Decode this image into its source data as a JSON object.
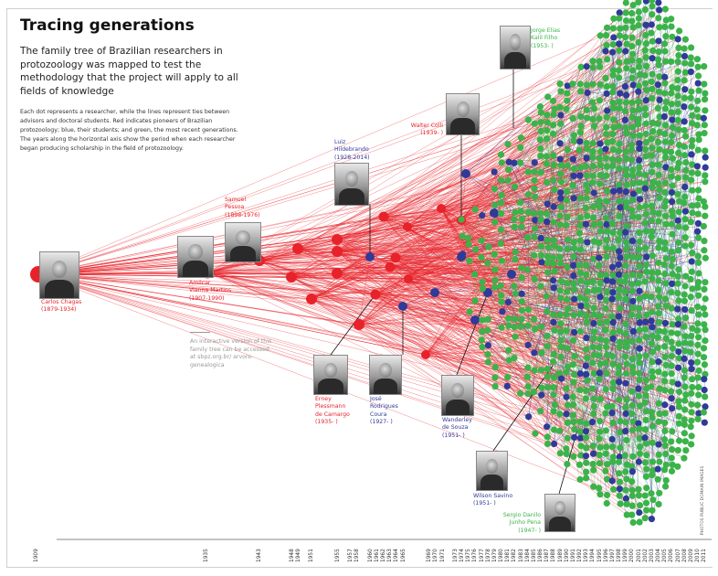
{
  "header": {
    "title": "Tracing generations",
    "subtitle": "The family tree of Brazilian researchers in protozoology was mapped to test the methodology that the project will apply to all fields of knowledge",
    "description": "Each dot represents a researcher, while the lines represent ties between advisors and doctoral students. Red indicates pioneers of Brazilian protozoology; blue, their students; and green, the most recent generations. The years along the horizontal axis show the period when each researcher began producing scholarship in the field of protozoology."
  },
  "note": "An interactive version of this family tree can be accessed at sbpz.org.br/ arvore-genealogica",
  "credit": "PHOTOS PUBLIC DOMAIN IMAGES",
  "colors": {
    "pioneers": "#e8222a",
    "students": "#2f3a99",
    "recent": "#3bb34a",
    "axis": "#888888"
  },
  "axis_years": [
    "1909",
    "1935",
    "1943",
    "1948",
    "1949",
    "1951",
    "1955",
    "1957",
    "1958",
    "1960",
    "1961",
    "1962",
    "1963",
    "1964",
    "1965",
    "1969",
    "1970",
    "1971",
    "1973",
    "1974",
    "1975",
    "1976",
    "1977",
    "1978",
    "1979",
    "1980",
    "1981",
    "1982",
    "1983",
    "1984",
    "1985",
    "1986",
    "1987",
    "1988",
    "1989",
    "1990",
    "1991",
    "1992",
    "1993",
    "1994",
    "1995",
    "1996",
    "1997",
    "1998",
    "1999",
    "2000",
    "2001",
    "2002",
    "2003",
    "2004",
    "2005",
    "2006",
    "2007",
    "2008",
    "2009",
    "2010",
    "2011"
  ],
  "researchers": [
    {
      "id": "chagas",
      "lines": [
        "Carlos Chagas",
        "(1879-1934)"
      ],
      "group": "pioneers"
    },
    {
      "id": "amilcar",
      "lines": [
        "Amilcar",
        "Vianna Martins",
        "(1907-1990)"
      ],
      "group": "pioneers"
    },
    {
      "id": "pessoa",
      "lines": [
        "Samuel",
        "Pessoa",
        "(1898-1976)"
      ],
      "group": "pioneers"
    },
    {
      "id": "hildebrando",
      "lines": [
        "Luiz",
        "Hildebrando",
        "(1928-2014)"
      ],
      "group": "students"
    },
    {
      "id": "colli",
      "lines": [
        "Walter Colli",
        "(1939- )"
      ],
      "group": "pioneers"
    },
    {
      "id": "kalil",
      "lines": [
        "Jorge Elias",
        "Kalil Filho",
        "(1953- )"
      ],
      "group": "recent"
    },
    {
      "id": "camargo",
      "lines": [
        "Erney",
        "Plessmann",
        "de Camargo",
        "(1935- )"
      ],
      "group": "pioneers"
    },
    {
      "id": "coura",
      "lines": [
        "José",
        "Rodrigues",
        "Coura",
        "(1927- )"
      ],
      "group": "students"
    },
    {
      "id": "souza",
      "lines": [
        "Wanderley",
        "de Souza",
        "(1951- )"
      ],
      "group": "students"
    },
    {
      "id": "savino",
      "lines": [
        "Wilson Savino",
        "(1951- )"
      ],
      "group": "students"
    },
    {
      "id": "pena",
      "lines": [
        "Sergio Danilo",
        "Junho Pena",
        "(1947- )"
      ],
      "group": "recent"
    }
  ]
}
